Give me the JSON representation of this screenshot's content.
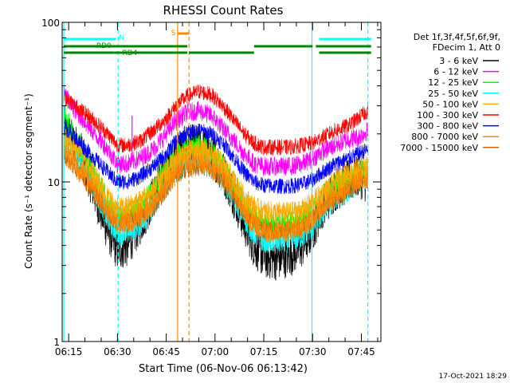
{
  "chart_data": {
    "type": "line",
    "title": "RHESSI Count Rates",
    "xlabel": "Start Time (06-Nov-06 06:13:42)",
    "ylabel": "Count Rate (s⁻¹ detector segment⁻¹)",
    "yscale": "log",
    "ylim": [
      1,
      100
    ],
    "xlim_minutes_after_0613": [
      0,
      98
    ],
    "x_tick_labels": [
      "06:15",
      "06:30",
      "06:45",
      "07:00",
      "07:15",
      "07:30",
      "07:45"
    ],
    "x_tick_minutes_after_0613": [
      2,
      17,
      32,
      47,
      62,
      77,
      92
    ],
    "y_tick_labels": [
      "1",
      "10",
      "100"
    ],
    "y_tick_values": [
      1,
      10,
      100
    ],
    "legend_position": "right",
    "legend_header": [
      "Det 1f,3f,4f,5f,6f,9f,",
      "FDecim 1, Att 0"
    ],
    "x_minutes": [
      0.5,
      3,
      6,
      10,
      14,
      17,
      20,
      24,
      28,
      32,
      35,
      38,
      42,
      46,
      50,
      53,
      56,
      59,
      62,
      66,
      70,
      74,
      77,
      80,
      84,
      88,
      91,
      94
    ],
    "series": [
      {
        "name": "3 - 6 keV",
        "color": "#000000",
        "values": [
          22,
          18,
          15,
          8.5,
          5,
          3.8,
          4,
          5.5,
          8,
          12,
          15,
          16.5,
          17,
          15,
          11,
          8,
          5.5,
          4,
          3.4,
          3.3,
          3.5,
          4,
          5,
          7,
          9,
          10,
          11,
          10
        ]
      },
      {
        "name": "6 - 12 keV",
        "color": "#ff00ff",
        "values": [
          36,
          30,
          25,
          20,
          16,
          13,
          13,
          14,
          16,
          20,
          24,
          27,
          28,
          26,
          21,
          18,
          15,
          13,
          12.5,
          12.5,
          12.5,
          13,
          14,
          15.5,
          17,
          18.5,
          19,
          21
        ]
      },
      {
        "name": "12 - 25 keV",
        "color": "#00ff00",
        "values": [
          28,
          20,
          16,
          11,
          7.5,
          6,
          6.2,
          7,
          9,
          12,
          14.5,
          16,
          16.5,
          15,
          12,
          9.5,
          7.5,
          6,
          5.5,
          5.5,
          5.6,
          6,
          6.5,
          8,
          9.5,
          10.5,
          11,
          12
        ]
      },
      {
        "name": "25 - 50 keV",
        "color": "#00ffff",
        "values": [
          18,
          16,
          13,
          9,
          6,
          4.8,
          4.8,
          5.5,
          7,
          9.5,
          11.5,
          13,
          13.5,
          12.5,
          10,
          8,
          6,
          4.8,
          4.3,
          4.3,
          4.3,
          4.6,
          5.3,
          6.5,
          8,
          9,
          10,
          10.5
        ]
      },
      {
        "name": "50 - 100 keV",
        "color": "#ffaa00",
        "values": [
          20,
          17,
          15,
          11,
          8,
          6.8,
          7,
          7.6,
          9,
          11.5,
          14,
          15.5,
          16,
          15,
          12.5,
          10,
          8,
          7,
          6.5,
          6.4,
          6.4,
          6.7,
          7.5,
          8.5,
          10,
          11.5,
          12,
          12.5
        ]
      },
      {
        "name": "100 - 300 keV",
        "color": "#ff0000",
        "values": [
          34,
          31,
          28,
          24,
          20,
          17,
          17,
          18,
          21,
          25,
          30,
          34,
          37,
          35,
          29,
          24,
          20,
          17.5,
          16.5,
          16.5,
          16.5,
          17,
          17.5,
          19,
          21,
          22.5,
          25,
          28
        ]
      },
      {
        "name": "300 - 800 keV",
        "color": "#0000ff",
        "values": [
          22,
          20,
          17,
          14,
          11.5,
          10,
          10,
          10.8,
          12.5,
          15,
          18,
          20,
          21,
          20,
          17,
          14,
          11.5,
          10,
          9.5,
          9.4,
          9.4,
          9.7,
          10.3,
          11.5,
          13,
          14,
          15,
          16
        ]
      },
      {
        "name": "800 - 7000 keV",
        "color": "#ff8800",
        "values": [
          16,
          14,
          12,
          9,
          6.5,
          5.5,
          5.7,
          6.2,
          7.5,
          10,
          12,
          13.5,
          14,
          13,
          11,
          8.5,
          6.5,
          5.5,
          5,
          5,
          5,
          5.3,
          6,
          7,
          8.5,
          9.5,
          10.5,
          11
        ]
      },
      {
        "name": "7000 - 15000 keV",
        "color": "#cc6600",
        "values": [
          15,
          13,
          11,
          8.5,
          6.5,
          5.5,
          5.6,
          6,
          7,
          9,
          11,
          12,
          12.5,
          12,
          10,
          8,
          6.5,
          5.5,
          5,
          5,
          5,
          5.2,
          5.8,
          6.8,
          8,
          9,
          10,
          10.5
        ]
      }
    ],
    "spikes": [
      {
        "series": "6 - 12 keV",
        "x_minute": 21.5,
        "value": 26
      }
    ],
    "attenuator_bars": [
      {
        "label": "N",
        "color": "#00ffff",
        "segments": [
          [
            0.5,
            16.5
          ],
          [
            79,
            95
          ]
        ],
        "label_at": 17.5
      },
      {
        "label": "RD0",
        "color": "#008800",
        "segments": [
          [
            0.5,
            38.5
          ],
          [
            59,
            77
          ],
          [
            78,
            95
          ]
        ],
        "label_at": 10.5
      },
      {
        "label": "RD4",
        "color": "#008800",
        "segments": [
          [
            0.5,
            16
          ],
          [
            16,
            38.5
          ],
          [
            39,
            59
          ],
          [
            79,
            95
          ]
        ],
        "label_at": 18.5
      },
      {
        "label": "S",
        "color": "#ff8800",
        "segments": [
          [
            35.5,
            39
          ]
        ],
        "label_at": 33.5
      }
    ],
    "vertical_lines": [
      {
        "x_minute": 0.5,
        "color": "#00ffff",
        "style": "solid"
      },
      {
        "x_minute": 17.2,
        "color": "#00ffff",
        "style": "dashed"
      },
      {
        "x_minute": 35.5,
        "color": "#ff8800",
        "style": "solid"
      },
      {
        "x_minute": 39,
        "color": "#ff8800",
        "style": "dashed"
      },
      {
        "x_minute": 76.8,
        "color": "#00ffff",
        "style": "solid"
      },
      {
        "x_minute": 94,
        "color": "#00ffff",
        "style": "dashed"
      }
    ]
  },
  "footer": {
    "timestamp": "17-Oct-2021 18:29"
  }
}
